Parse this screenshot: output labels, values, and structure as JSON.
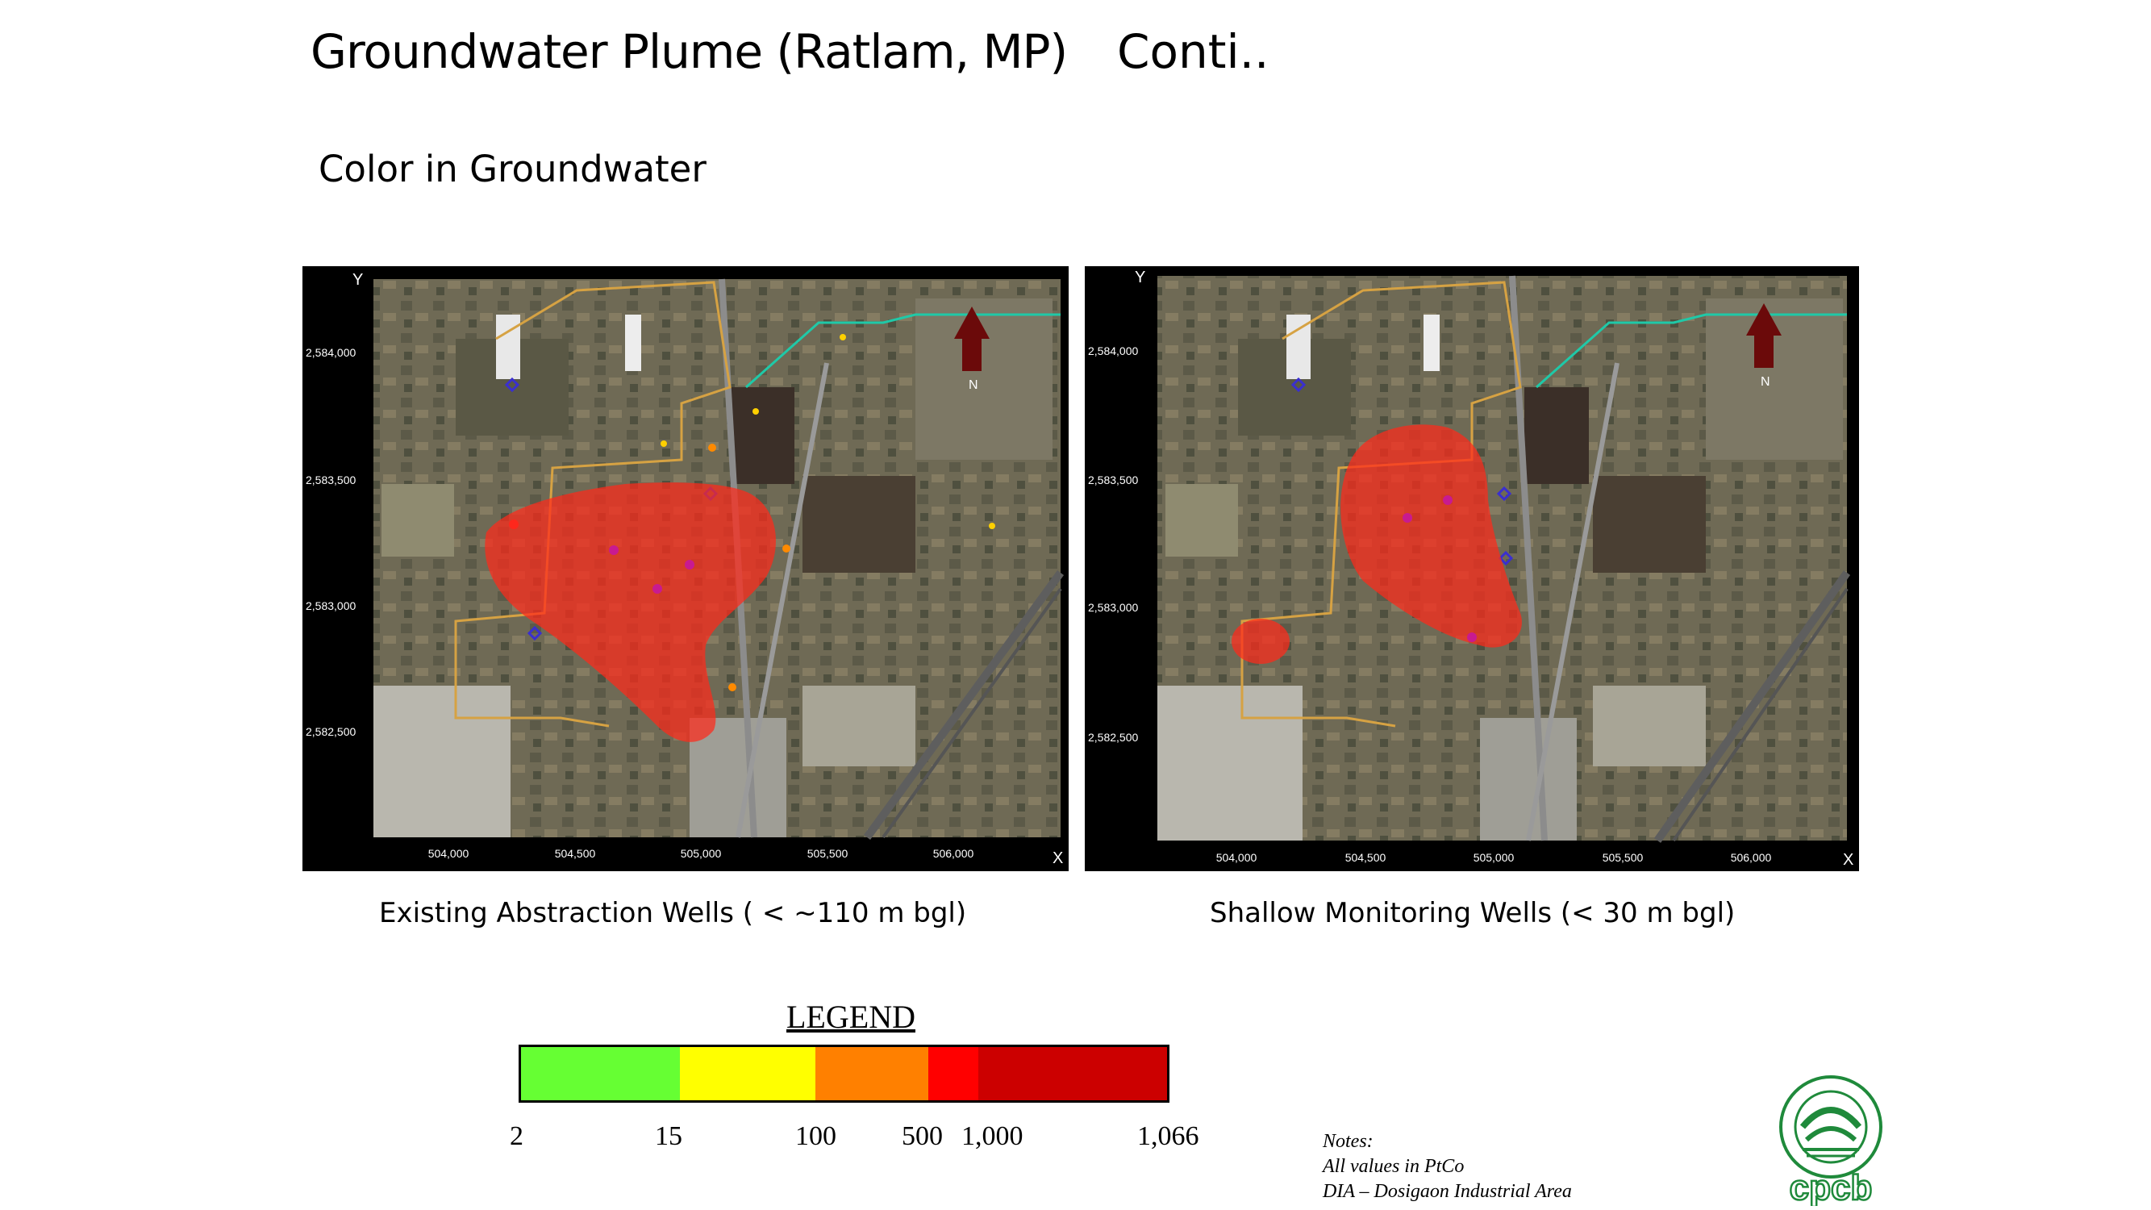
{
  "header": {
    "title": "Groundwater Plume (Ratlam, MP)",
    "conti": "Conti.."
  },
  "subtitle": "Color in Groundwater",
  "maps": [
    {
      "caption": "Existing Abstraction Wells ( < ~110 m bgl)",
      "y_axis_label": "Y",
      "x_axis_label": "X",
      "north_label": "N",
      "y_ticks": [
        "2,584,000",
        "2,583,500",
        "2,583,000",
        "2,582,500"
      ],
      "x_ticks": [
        "504,000",
        "504,500",
        "505,000",
        "505,500",
        "506,000"
      ]
    },
    {
      "caption": "Shallow Monitoring Wells (< 30 m bgl)",
      "y_axis_label": "Y",
      "x_axis_label": "X",
      "north_label": "N",
      "y_ticks": [
        "2,584,000",
        "2,583,500",
        "2,583,000",
        "2,582,500"
      ],
      "x_ticks": [
        "504,000",
        "504,500",
        "505,000",
        "505,500",
        "506,000"
      ]
    }
  ],
  "legend": {
    "title": "LEGEND",
    "colors": [
      "#66ff33",
      "#ffff00",
      "#ff8000",
      "#ff0000",
      "#cc0000"
    ],
    "labels": [
      "2",
      "15",
      "100",
      "500",
      "1,000",
      "1,066"
    ]
  },
  "notes": {
    "heading": "Notes:",
    "line1": "All values in PtCo",
    "line2": "DIA – Dosigaon Industrial Area"
  },
  "logo": {
    "text": "cpcb",
    "icon": "cpcb-logo-icon"
  }
}
